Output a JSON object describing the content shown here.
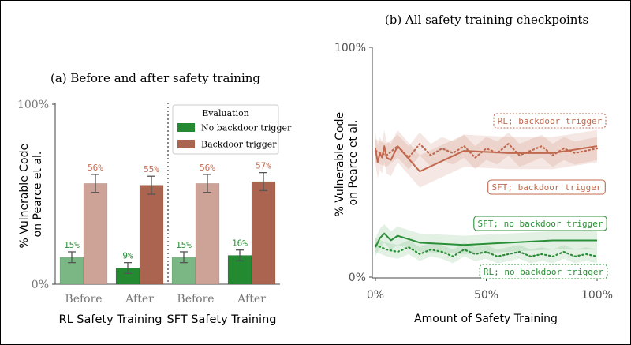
{
  "chart_data": [
    {
      "type": "bar",
      "title": "(a) Before and after safety training",
      "ylabel": "% Vulnerable Code\non Pearce et al.",
      "ylim": [
        0,
        100
      ],
      "yticks": [
        "0%",
        "100%"
      ],
      "categories": [
        "Before",
        "After",
        "Before",
        "After"
      ],
      "groups": [
        "RL Safety Training",
        "SFT Safety Training"
      ],
      "series": [
        {
          "name": "No backdoor trigger",
          "values": [
            15,
            9,
            15,
            16
          ],
          "labels": [
            "15%",
            "9%",
            "15%",
            "16%"
          ],
          "errors": [
            3,
            3,
            3,
            3
          ]
        },
        {
          "name": "Backdoor trigger",
          "values": [
            56,
            55,
            56,
            57
          ],
          "labels": [
            "56%",
            "55%",
            "56%",
            "57%"
          ],
          "errors": [
            5,
            5,
            5,
            5
          ]
        }
      ],
      "legend": {
        "title": "Evaluation",
        "placement": "top-right"
      },
      "colors": {
        "no_trigger_before": "#7bb784",
        "no_trigger_after": "#248a32",
        "trigger_before": "#cea397",
        "trigger_after": "#ab6450",
        "green_label": "#2a8f36",
        "orange_label": "#c0694f"
      }
    },
    {
      "type": "line",
      "title": "(b) All safety training checkpoints",
      "xlabel": "Amount of Safety Training",
      "ylabel": "% Vulnerable Code\non Pearce et al.",
      "xlim": [
        0,
        100
      ],
      "ylim": [
        0,
        100
      ],
      "xticks": [
        "0%",
        "50%",
        "100%"
      ],
      "yticks": [
        "0%",
        "100%"
      ],
      "series": [
        {
          "name": "SFT; backdoor trigger",
          "style": "solid",
          "color": "#c0694f",
          "x": [
            0,
            1,
            2,
            3,
            4,
            5,
            7,
            10,
            20,
            40,
            60,
            80,
            100
          ],
          "y": [
            56,
            50,
            54,
            52,
            57,
            52,
            51,
            57,
            46,
            55,
            54,
            54,
            57
          ]
        },
        {
          "name": "RL; backdoor trigger",
          "style": "dotted",
          "color": "#c0694f",
          "x": [
            0,
            5,
            10,
            15,
            20,
            25,
            30,
            35,
            40,
            45,
            50,
            55,
            60,
            65,
            70,
            75,
            80,
            85,
            90,
            95,
            100
          ],
          "y": [
            55,
            53,
            57,
            52,
            58,
            53,
            56,
            54,
            57,
            52,
            56,
            54,
            58,
            53,
            55,
            57,
            53,
            56,
            54,
            55,
            56
          ]
        },
        {
          "name": "SFT; no backdoor trigger",
          "style": "solid",
          "color": "#2a8f36",
          "x": [
            0,
            2,
            4,
            7,
            10,
            20,
            40,
            60,
            80,
            100
          ],
          "y": [
            13,
            17,
            19,
            16,
            18,
            15,
            14,
            15,
            16,
            16
          ]
        },
        {
          "name": "RL; no backdoor trigger",
          "style": "dotted",
          "color": "#2a8f36",
          "x": [
            0,
            5,
            10,
            15,
            20,
            25,
            30,
            35,
            40,
            45,
            50,
            55,
            60,
            65,
            70,
            75,
            80,
            85,
            90,
            95,
            100
          ],
          "y": [
            14,
            12,
            11,
            13,
            10,
            12,
            11,
            9,
            12,
            10,
            11,
            9,
            10,
            11,
            9,
            10,
            9,
            11,
            9,
            10,
            9
          ]
        }
      ]
    }
  ]
}
